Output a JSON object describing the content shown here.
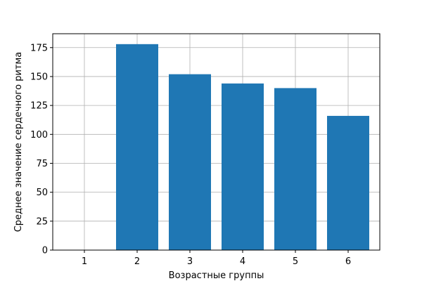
{
  "chart_data": {
    "type": "bar",
    "categories": [
      "1",
      "2",
      "3",
      "4",
      "5",
      "6"
    ],
    "values": [
      0,
      178,
      152,
      144,
      140,
      116
    ],
    "title": "",
    "xlabel": "Возрастные группы",
    "ylabel": "Среднее значение сердечного ритма",
    "ylim": [
      0,
      187
    ],
    "yticks": [
      0,
      25,
      50,
      75,
      100,
      125,
      150,
      175
    ],
    "grid": true,
    "bar_color": "#1f77b4",
    "grid_color": "#b0b0b0"
  }
}
